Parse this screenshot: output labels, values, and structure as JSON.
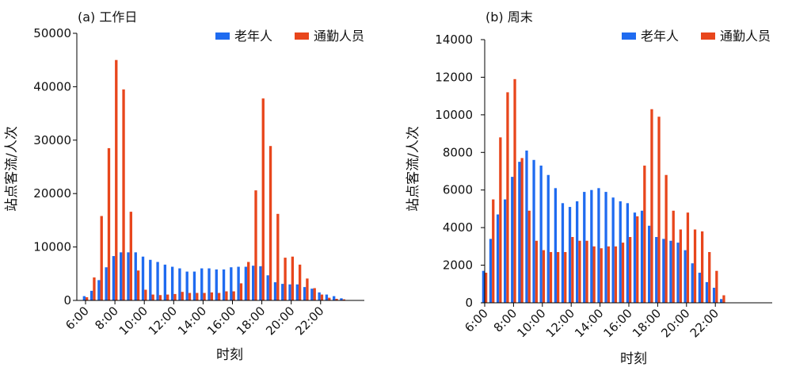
{
  "colors": {
    "elderly": "#1f6bf0",
    "commuter": "#e8461c",
    "axis": "#000000"
  },
  "chart_data": [
    {
      "type": "bar",
      "title": "(a) 工作日",
      "xlabel": "时刻",
      "ylabel": "站点客流/人次",
      "ylim": [
        0,
        50000
      ],
      "yticks": [
        "0",
        "10000",
        "20000",
        "30000",
        "40000",
        "50000"
      ],
      "xticks": [
        "6:00",
        "8:00",
        "10:00",
        "12:00",
        "14:00",
        "16:00",
        "18:00",
        "20:00",
        "22:00"
      ],
      "x_start_hour": 6,
      "x_step_hours": 0.5,
      "legend_position": "top-right",
      "grid": false,
      "series": [
        {
          "name": "老年人",
          "color_key": "elderly",
          "values": [
            800,
            1800,
            3800,
            6200,
            8300,
            9000,
            9000,
            9000,
            8200,
            7600,
            7200,
            6700,
            6300,
            6000,
            5400,
            5400,
            6000,
            6000,
            5800,
            5800,
            6200,
            6300,
            6300,
            6500,
            6400,
            4700,
            3400,
            3100,
            3000,
            3000,
            2500,
            2200,
            1500,
            1100,
            800,
            400
          ]
        },
        {
          "name": "通勤人员",
          "color_key": "commuter",
          "values": [
            600,
            4300,
            15800,
            28500,
            45000,
            39500,
            16600,
            5600,
            2000,
            1100,
            1000,
            1100,
            1200,
            1600,
            1400,
            1400,
            1400,
            1500,
            1400,
            1700,
            1700,
            3200,
            7200,
            20600,
            37800,
            28900,
            16200,
            8000,
            8200,
            6700,
            4100,
            2300,
            1100,
            500,
            300,
            200
          ]
        }
      ]
    },
    {
      "type": "bar",
      "title": "(b) 周末",
      "xlabel": "时刻",
      "ylabel": "站点客流/人次",
      "ylim": [
        0,
        14000
      ],
      "yticks": [
        "0",
        "2000",
        "4000",
        "6000",
        "8000",
        "10000",
        "12000",
        "14000"
      ],
      "xticks": [
        "6:00",
        "8:00",
        "10:00",
        "12:00",
        "14:00",
        "16:00",
        "18:00",
        "20:00",
        "22:00"
      ],
      "x_start_hour": 6,
      "x_step_hours": 0.5,
      "legend_position": "top-right",
      "grid": false,
      "series": [
        {
          "name": "老年人",
          "color_key": "elderly",
          "values": [
            1700,
            3400,
            4700,
            5500,
            6700,
            7500,
            8100,
            7600,
            7300,
            6800,
            6100,
            5300,
            5100,
            5400,
            5900,
            6000,
            6100,
            5900,
            5600,
            5400,
            5300,
            4800,
            4900,
            4100,
            3500,
            3400,
            3300,
            3200,
            2800,
            2100,
            1600,
            1100,
            800,
            200
          ]
        },
        {
          "name": "通勤人员",
          "color_key": "commuter",
          "values": [
            1600,
            5500,
            8800,
            11200,
            11900,
            7700,
            4900,
            3300,
            2800,
            2700,
            2700,
            2700,
            3500,
            3300,
            3300,
            3000,
            2900,
            3000,
            3000,
            3200,
            3500,
            4600,
            7300,
            10300,
            9900,
            6800,
            4900,
            3900,
            4800,
            3900,
            3800,
            2700,
            1700,
            400
          ]
        }
      ]
    }
  ]
}
